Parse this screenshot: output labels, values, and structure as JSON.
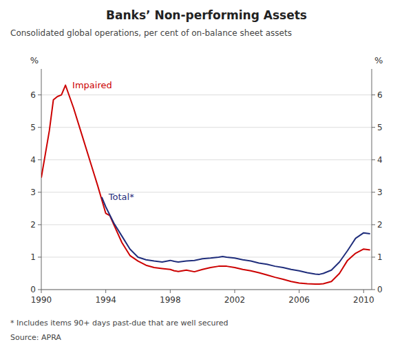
{
  "chart_data": {
    "type": "line",
    "title": "Banks’ Non-performing Assets",
    "subtitle": "Consolidated global operations, per cent of on-balance sheet assets",
    "y_label": "%",
    "y2_label": "%",
    "footnote": "*  Includes items 90+ days past-due that are well secured",
    "source": "Source: APRA",
    "xlim": [
      1990,
      2010.5
    ],
    "xticks": [
      1990,
      1994,
      1998,
      2002,
      2006,
      2010
    ],
    "ylim": [
      0,
      6.8
    ],
    "yticks": [
      0,
      1,
      2,
      3,
      4,
      5,
      6
    ],
    "y2lim": [
      0,
      6.8
    ],
    "y2ticks": [
      0,
      1,
      2,
      3,
      4,
      5,
      6
    ],
    "grid": true,
    "series": [
      {
        "name": "Impaired",
        "color": "#cc0000",
        "x": [
          1990.0,
          1990.5,
          1990.75,
          1991.0,
          1991.25,
          1991.5,
          1992.0,
          1992.5,
          1993.0,
          1993.5,
          1994.0,
          1994.25,
          1994.5,
          1995.0,
          1995.5,
          1996.0,
          1996.5,
          1997.0,
          1997.5,
          1998.0,
          1998.25,
          1998.5,
          1999.0,
          1999.5,
          2000.0,
          2000.5,
          2001.0,
          2001.5,
          2002.0,
          2002.5,
          2003.0,
          2003.5,
          2004.0,
          2004.5,
          2005.0,
          2005.5,
          2006.0,
          2006.5,
          2007.0,
          2007.25,
          2007.5,
          2008.0,
          2008.5,
          2009.0,
          2009.5,
          2010.0,
          2010.4
        ],
        "values": [
          3.45,
          4.9,
          5.85,
          5.95,
          6.0,
          6.3,
          5.6,
          4.8,
          4.0,
          3.2,
          2.35,
          2.28,
          2.0,
          1.45,
          1.05,
          0.88,
          0.75,
          0.68,
          0.65,
          0.62,
          0.58,
          0.56,
          0.6,
          0.55,
          0.62,
          0.68,
          0.72,
          0.72,
          0.68,
          0.62,
          0.58,
          0.52,
          0.45,
          0.38,
          0.32,
          0.25,
          0.2,
          0.18,
          0.17,
          0.17,
          0.18,
          0.25,
          0.5,
          0.9,
          1.12,
          1.25,
          1.22
        ]
      },
      {
        "name": "Total*",
        "color": "#1f2d7b",
        "x": [
          1993.75,
          1994.0,
          1994.5,
          1995.0,
          1995.5,
          1996.0,
          1996.5,
          1997.0,
          1997.5,
          1998.0,
          1998.25,
          1998.5,
          1999.0,
          1999.5,
          2000.0,
          2000.5,
          2001.0,
          2001.25,
          2001.5,
          2002.0,
          2002.5,
          2003.0,
          2003.5,
          2004.0,
          2004.5,
          2005.0,
          2005.5,
          2006.0,
          2006.5,
          2007.0,
          2007.25,
          2007.5,
          2008.0,
          2008.5,
          2009.0,
          2009.5,
          2010.0,
          2010.4
        ],
        "values": [
          2.85,
          2.55,
          2.05,
          1.65,
          1.25,
          1.0,
          0.92,
          0.88,
          0.85,
          0.9,
          0.87,
          0.85,
          0.88,
          0.9,
          0.95,
          0.97,
          1.0,
          1.02,
          1.0,
          0.97,
          0.92,
          0.88,
          0.82,
          0.78,
          0.72,
          0.68,
          0.62,
          0.58,
          0.52,
          0.48,
          0.47,
          0.5,
          0.6,
          0.85,
          1.2,
          1.58,
          1.75,
          1.72
        ]
      }
    ]
  }
}
